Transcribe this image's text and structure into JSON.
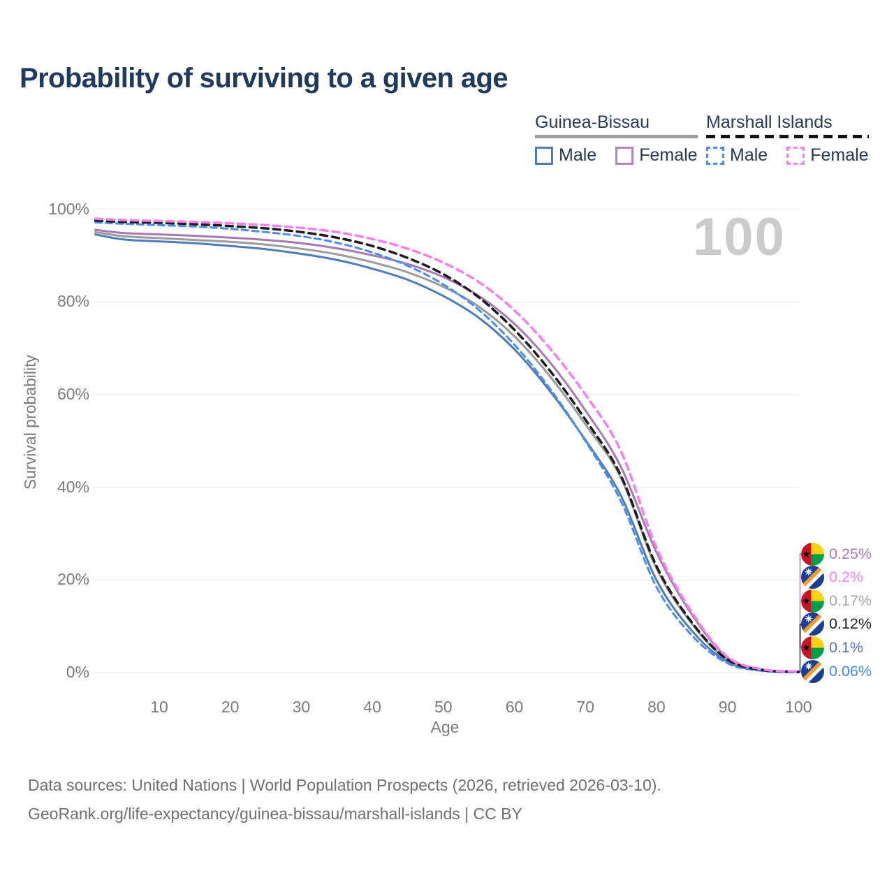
{
  "title": "Probability of surviving to a given age",
  "watermark": "100",
  "legend": {
    "groups": [
      {
        "name": "Guinea-Bissau",
        "line_style": "solid",
        "rule_color": "#9e9e9e",
        "items": [
          {
            "label": "Male",
            "color": "#4d7cbb"
          },
          {
            "label": "Female",
            "color": "#b286bb"
          }
        ]
      },
      {
        "name": "Marshall Islands",
        "line_style": "dashed",
        "rule_color": "#141414",
        "items": [
          {
            "label": "Male",
            "color": "#4a8df2"
          },
          {
            "label": "Female",
            "color": "#fb7df2"
          }
        ]
      }
    ]
  },
  "axes": {
    "y_title": "Survival probability",
    "x_title": "Age",
    "y_ticks": [
      {
        "label": "100%",
        "value": 100
      },
      {
        "label": "80%",
        "value": 80
      },
      {
        "label": "60%",
        "value": 60
      },
      {
        "label": "40%",
        "value": 40
      },
      {
        "label": "20%",
        "value": 20
      },
      {
        "label": "0%",
        "value": 0
      }
    ],
    "x_ticks": [
      {
        "label": "10",
        "value": 10
      },
      {
        "label": "20",
        "value": 20
      },
      {
        "label": "30",
        "value": 30
      },
      {
        "label": "40",
        "value": 40
      },
      {
        "label": "50",
        "value": 50
      },
      {
        "label": "60",
        "value": 60
      },
      {
        "label": "70",
        "value": 70
      },
      {
        "label": "80",
        "value": 80
      },
      {
        "label": "90",
        "value": 90
      },
      {
        "label": "100",
        "value": 100
      }
    ]
  },
  "chart_data": {
    "type": "line",
    "title": "Probability of surviving to a given age",
    "xlabel": "Age",
    "ylabel": "Survival probability",
    "xlim": [
      0,
      100
    ],
    "ylim": [
      0,
      100
    ],
    "grid": "horizontal-only",
    "gridline_color": "#e8e8e8",
    "x": [
      1,
      5,
      10,
      15,
      20,
      25,
      30,
      35,
      40,
      45,
      50,
      55,
      60,
      65,
      70,
      75,
      80,
      85,
      90,
      95,
      100
    ],
    "series": [
      {
        "name": "Guinea-Bissau Male",
        "color": "#4d7cbb",
        "style": "solid",
        "width": 3,
        "dash": "",
        "end_value_label": "0.1%",
        "values": [
          94.6,
          93.5,
          93.1,
          92.7,
          92.1,
          91.4,
          90.4,
          89.1,
          87.2,
          84.8,
          81.3,
          76.6,
          69.8,
          60.8,
          50.2,
          38.2,
          20.0,
          9.0,
          2.3,
          0.45,
          0.1
        ]
      },
      {
        "name": "Guinea-Bissau Both sexes",
        "color": "#9b9b9b",
        "style": "solid",
        "width": 3,
        "dash": "",
        "end_value_label": "0.17%",
        "values": [
          95.1,
          94.2,
          93.8,
          93.4,
          93.0,
          92.4,
          91.5,
          90.3,
          88.6,
          86.4,
          83.3,
          79.0,
          72.6,
          64.0,
          53.6,
          42.0,
          22.5,
          10.5,
          2.7,
          0.5,
          0.17
        ]
      },
      {
        "name": "Guinea-Bissau Female",
        "color": "#a878b4",
        "style": "solid",
        "width": 3,
        "dash": "",
        "end_value_label": "0.25%",
        "values": [
          95.6,
          94.9,
          94.6,
          94.3,
          93.9,
          93.4,
          92.7,
          91.6,
          90.1,
          88.2,
          85.4,
          81.3,
          75.3,
          67.0,
          56.6,
          44.4,
          26.0,
          12.5,
          3.2,
          0.65,
          0.25
        ]
      },
      {
        "name": "Marshall Islands Male",
        "color": "#4a8df2",
        "style": "dashed",
        "width": 3,
        "dash": "9 6",
        "end_value_label": "0.06%",
        "values": [
          97.2,
          96.9,
          96.6,
          96.3,
          95.8,
          95.1,
          94.2,
          92.8,
          90.7,
          87.8,
          83.8,
          78.3,
          70.8,
          61.3,
          50.0,
          37.0,
          18.5,
          8.0,
          2.0,
          0.35,
          0.06
        ]
      },
      {
        "name": "Marshall Islands Both sexes",
        "color": "#1c1c1c",
        "style": "dashed",
        "width": 3.5,
        "dash": "10 7",
        "end_value_label": "0.12%",
        "values": [
          97.6,
          97.3,
          97.1,
          96.8,
          96.4,
          95.9,
          95.1,
          93.9,
          92.1,
          89.5,
          86.0,
          81.0,
          74.0,
          65.2,
          54.6,
          42.5,
          23.0,
          10.8,
          2.8,
          0.55,
          0.12
        ]
      },
      {
        "name": "Marshall Islands Female",
        "color": "#fb7df2",
        "style": "dashed",
        "width": 3.5,
        "dash": "10 7",
        "end_value_label": "0.2%",
        "values": [
          98.0,
          97.7,
          97.5,
          97.3,
          97.0,
          96.6,
          96.0,
          95.1,
          93.6,
          91.5,
          88.5,
          84.3,
          78.2,
          70.0,
          60.0,
          47.8,
          27.0,
          13.0,
          3.4,
          0.7,
          0.2
        ]
      }
    ]
  },
  "end_labels": [
    {
      "text": "0.25%",
      "value": 0.25,
      "color": "#a97bb5",
      "flag": "guinea-bissau"
    },
    {
      "text": "0.2%",
      "value": 0.2,
      "color": "#fd7ffd",
      "flag": "marshall-islands"
    },
    {
      "text": "0.17%",
      "value": 0.17,
      "color": "#a6a6a6",
      "flag": "guinea-bissau"
    },
    {
      "text": "0.12%",
      "value": 0.12,
      "color": "#1f1f1f",
      "flag": "marshall-islands"
    },
    {
      "text": "0.1%",
      "value": 0.1,
      "color": "#5276b8",
      "flag": "guinea-bissau"
    },
    {
      "text": "0.06%",
      "value": 0.06,
      "color": "#3f8cf5",
      "flag": "marshall-islands"
    }
  ],
  "flags": {
    "guinea_bissau": {
      "red": "#ce1126",
      "yellow": "#fcd116",
      "green": "#009e49",
      "star": "#000000"
    },
    "marshall_islands": {
      "blue": "#1b3d94",
      "orange": "#f59b20",
      "white": "#ffffff"
    }
  },
  "footer": {
    "line1": "Data sources: United Nations | World Population Prospects (2026, retrieved 2026-03-10).",
    "line2": "GeoRank.org/life-expectancy/guinea-bissau/marshall-islands | CC BY"
  }
}
